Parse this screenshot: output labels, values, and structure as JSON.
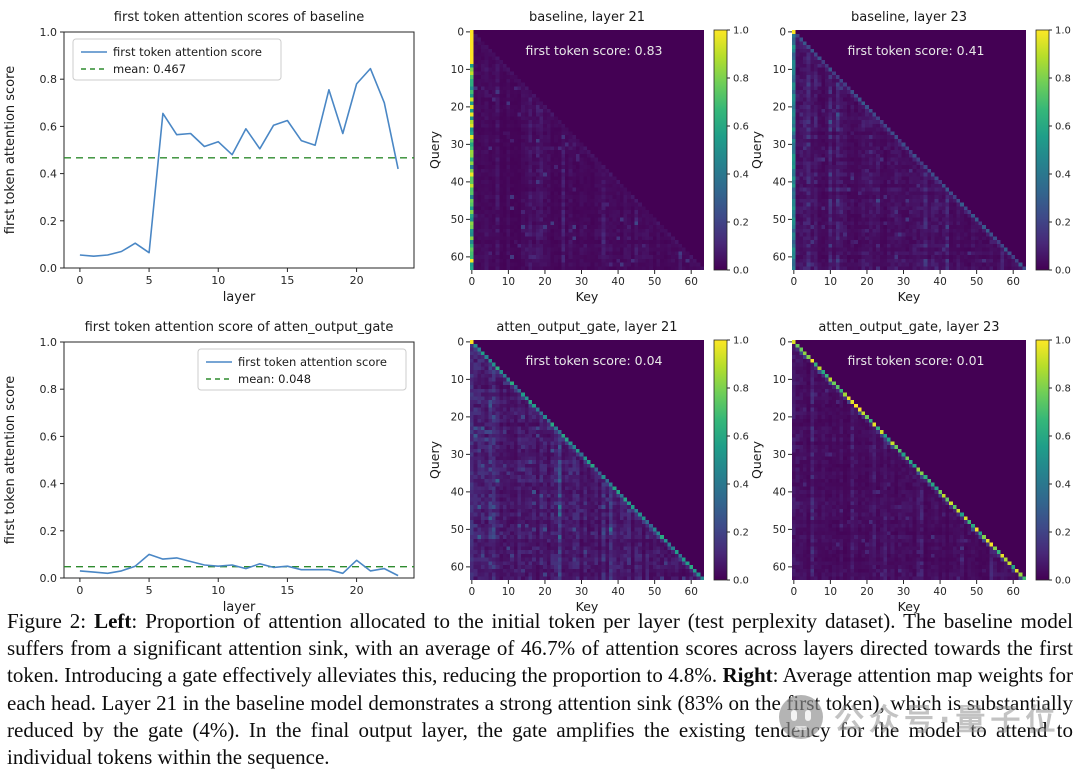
{
  "figure": {
    "caption": {
      "segments": [
        {
          "text": "Figure 2: ",
          "bold": false
        },
        {
          "text": "Left",
          "bold": true
        },
        {
          "text": ": Proportion of attention allocated to the initial token per layer (test perplexity dataset). The baseline model suffers from a significant attention sink, with an average of 46.7% of attention scores across layers directed towards the first token. Introducing a gate effectively alleviates this, reducing the proportion to 4.8%. ",
          "bold": false
        },
        {
          "text": "Right",
          "bold": true
        },
        {
          "text": ": Average attention map weights for each head. Layer 21 in the baseline model demonstrates a strong attention sink (83% on the first token), which is substantially reduced by the gate (4%). In the final output layer, the gate amplifies the existing tendency for the model to attend to individual tokens within the sequence.",
          "bold": false
        }
      ]
    },
    "watermark": {
      "text": "公众号·量子位",
      "logo": "qbitai-face-icon"
    }
  },
  "chart_data": [
    {
      "type": "line",
      "panel": "top-left",
      "title": "first token attention scores of baseline",
      "xlabel": "layer",
      "ylabel": "first token attention score",
      "x": [
        0,
        1,
        2,
        3,
        4,
        5,
        6,
        7,
        8,
        9,
        10,
        11,
        12,
        13,
        14,
        15,
        16,
        17,
        18,
        19,
        20,
        21,
        22,
        23
      ],
      "series": [
        {
          "name": "first token attention score",
          "color": "#4a87c5",
          "values": [
            0.055,
            0.05,
            0.055,
            0.07,
            0.105,
            0.065,
            0.655,
            0.565,
            0.57,
            0.515,
            0.535,
            0.48,
            0.59,
            0.505,
            0.605,
            0.625,
            0.54,
            0.52,
            0.755,
            0.57,
            0.78,
            0.845,
            0.7,
            0.42
          ]
        }
      ],
      "mean_line": {
        "label": "mean: 0.467",
        "value": 0.467,
        "color": "#2e8b2e",
        "style": "dashed"
      },
      "xlim": [
        -1.15,
        24.15
      ],
      "ylim": [
        0,
        1
      ],
      "xticks": [
        0,
        5,
        10,
        15,
        20
      ],
      "yticks": [
        0.0,
        0.2,
        0.4,
        0.6,
        0.8,
        1.0
      ],
      "legend_position": "upper-left",
      "grid": false
    },
    {
      "type": "heatmap",
      "panel": "top-middle",
      "title": "baseline, layer 21",
      "annotation": "first token score: 0.83",
      "first_token_score": 0.83,
      "xlabel": "Key",
      "ylabel": "Query",
      "size": 64,
      "ticks": [
        0,
        10,
        20,
        30,
        40,
        50,
        60
      ],
      "colormap": "viridis",
      "colorbar_ticks": [
        0.0,
        0.2,
        0.4,
        0.6,
        0.8,
        1.0
      ],
      "value_range": [
        0,
        1
      ],
      "pattern": {
        "seed": 101,
        "triangular": true,
        "first_col": {
          "top_rows": 9,
          "top_value": 1.0,
          "rest_min": 0.42,
          "rest_max": 1.0
        },
        "diag": {
          "min": 0.02,
          "max": 0.07
        },
        "noise": {
          "base": 0.022,
          "speckle_prob": 0.05,
          "speckle_max": 0.16
        },
        "left_cols_boost": {
          "until": 1,
          "factor": 1.0
        }
      }
    },
    {
      "type": "heatmap",
      "panel": "top-right",
      "title": "baseline, layer 23",
      "annotation": "first token score: 0.41",
      "first_token_score": 0.41,
      "xlabel": "Key",
      "ylabel": "Query",
      "size": 64,
      "ticks": [
        0,
        10,
        20,
        30,
        40,
        50,
        60
      ],
      "colormap": "viridis",
      "colorbar_ticks": [
        0.0,
        0.2,
        0.4,
        0.6,
        0.8,
        1.0
      ],
      "value_range": [
        0,
        1
      ],
      "pattern": {
        "seed": 202,
        "triangular": true,
        "first_col": {
          "top_rows": 1,
          "top_value": 1.0,
          "rest_min": 0.3,
          "rest_max": 0.55
        },
        "diag": {
          "min": 0.16,
          "max": 0.3
        },
        "noise": {
          "base": 0.035,
          "speckle_prob": 0.06,
          "speckle_max": 0.13
        },
        "left_cols_boost": {
          "until": 7,
          "factor": 1.7
        }
      }
    },
    {
      "type": "line",
      "panel": "bottom-left",
      "title": "first token attention score of atten_output_gate",
      "xlabel": "layer",
      "ylabel": "first token attention score",
      "x": [
        0,
        1,
        2,
        3,
        4,
        5,
        6,
        7,
        8,
        9,
        10,
        11,
        12,
        13,
        14,
        15,
        16,
        17,
        18,
        19,
        20,
        21,
        22,
        23
      ],
      "series": [
        {
          "name": "first token attention score",
          "color": "#4a87c5",
          "values": [
            0.03,
            0.025,
            0.02,
            0.03,
            0.05,
            0.1,
            0.08,
            0.085,
            0.07,
            0.055,
            0.05,
            0.055,
            0.04,
            0.06,
            0.045,
            0.05,
            0.035,
            0.035,
            0.035,
            0.02,
            0.075,
            0.03,
            0.04,
            0.01
          ]
        }
      ],
      "mean_line": {
        "label": "mean: 0.048",
        "value": 0.048,
        "color": "#2e8b2e",
        "style": "dashed"
      },
      "xlim": [
        -1.15,
        24.15
      ],
      "ylim": [
        0,
        1
      ],
      "xticks": [
        0,
        5,
        10,
        15,
        20
      ],
      "yticks": [
        0.0,
        0.2,
        0.4,
        0.6,
        0.8,
        1.0
      ],
      "legend_position": "upper-right",
      "grid": false
    },
    {
      "type": "heatmap",
      "panel": "bottom-middle",
      "title": "atten_output_gate, layer 21",
      "annotation": "first token score: 0.04",
      "first_token_score": 0.04,
      "xlabel": "Key",
      "ylabel": "Query",
      "size": 64,
      "ticks": [
        0,
        10,
        20,
        30,
        40,
        50,
        60
      ],
      "colormap": "viridis",
      "colorbar_ticks": [
        0.0,
        0.2,
        0.4,
        0.6,
        0.8,
        1.0
      ],
      "value_range": [
        0,
        1
      ],
      "pattern": {
        "seed": 303,
        "triangular": true,
        "first_col": {
          "top_rows": 1,
          "top_value": 1.0,
          "rest_min": 0.08,
          "rest_max": 0.18
        },
        "diag": {
          "min": 0.3,
          "max": 0.62
        },
        "noise": {
          "base": 0.055,
          "speckle_prob": 0.08,
          "speckle_max": 0.17
        },
        "left_cols_boost": {
          "until": 9,
          "factor": 1.9
        }
      }
    },
    {
      "type": "heatmap",
      "panel": "bottom-right",
      "title": "atten_output_gate, layer 23",
      "annotation": "first token score: 0.01",
      "first_token_score": 0.01,
      "xlabel": "Key",
      "ylabel": "Query",
      "size": 64,
      "ticks": [
        0,
        10,
        20,
        30,
        40,
        50,
        60
      ],
      "colormap": "viridis",
      "colorbar_ticks": [
        0.0,
        0.2,
        0.4,
        0.6,
        0.8,
        1.0
      ],
      "value_range": [
        0,
        1
      ],
      "pattern": {
        "seed": 404,
        "triangular": true,
        "first_col": {
          "top_rows": 1,
          "top_value": 0.95,
          "rest_min": 0.02,
          "rest_max": 0.1
        },
        "diag": {
          "min": 0.55,
          "max": 1.0
        },
        "noise": {
          "base": 0.025,
          "speckle_prob": 0.05,
          "speckle_max": 0.1
        },
        "left_cols_boost": {
          "until": 3,
          "factor": 1.4
        }
      }
    }
  ]
}
